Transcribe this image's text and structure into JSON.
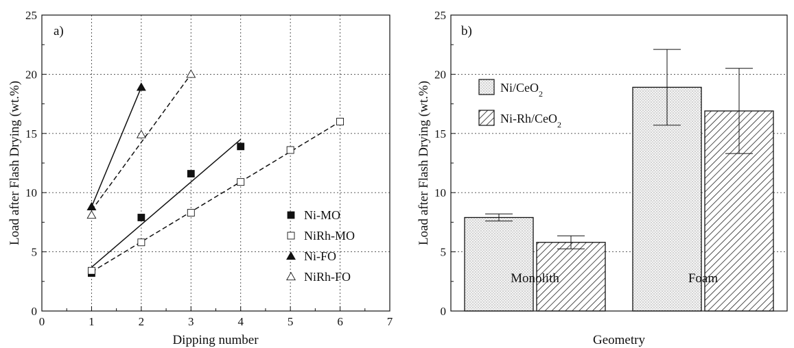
{
  "chart_data": [
    {
      "type": "scatter",
      "panel_label": "a)",
      "xlabel": "Dipping number",
      "ylabel": "Load after Flash Drying (wt.%)",
      "xlim": [
        0,
        7
      ],
      "ylim": [
        0,
        25
      ],
      "x_ticks": [
        "0",
        "1",
        "2",
        "3",
        "4",
        "5",
        "6",
        "7"
      ],
      "y_ticks": [
        "0",
        "5",
        "10",
        "15",
        "20",
        "25"
      ],
      "grid": true,
      "legend_position": "bottom-right",
      "series": [
        {
          "name": "Ni-MO",
          "marker": "square-filled",
          "fit": "solid",
          "points": [
            [
              1,
              3.2
            ],
            [
              2,
              7.9
            ],
            [
              3,
              11.6
            ],
            [
              4,
              13.9
            ]
          ],
          "fit_line": [
            [
              1,
              3.7
            ],
            [
              4,
              14.5
            ]
          ]
        },
        {
          "name": "NiRh-MO",
          "marker": "square-open",
          "fit": "dashed",
          "points": [
            [
              1,
              3.4
            ],
            [
              2,
              5.8
            ],
            [
              3,
              8.3
            ],
            [
              4,
              10.9
            ],
            [
              5,
              13.6
            ],
            [
              6,
              16.0
            ]
          ],
          "fit_line": [
            [
              1,
              3.3
            ],
            [
              6,
              16.0
            ]
          ]
        },
        {
          "name": "Ni-FO",
          "marker": "triangle-filled",
          "fit": "solid",
          "points": [
            [
              1,
              8.8
            ],
            [
              2,
              18.9
            ]
          ],
          "fit_line": [
            [
              1,
              8.8
            ],
            [
              2,
              18.9
            ]
          ]
        },
        {
          "name": "NiRh-FO",
          "marker": "triangle-open",
          "fit": "dashed",
          "points": [
            [
              1,
              8.1
            ],
            [
              2,
              14.9
            ],
            [
              3,
              20.0
            ]
          ],
          "fit_line": [
            [
              1,
              8.5
            ],
            [
              3,
              20.0
            ]
          ]
        }
      ]
    },
    {
      "type": "bar",
      "panel_label": "b)",
      "xlabel": "Geometry",
      "ylabel": "Load after Flash Drying (wt.%)",
      "ylim": [
        0,
        25
      ],
      "y_ticks": [
        "0",
        "5",
        "10",
        "15",
        "20",
        "25"
      ],
      "grid": true,
      "legend_position": "top-left",
      "categories": [
        "Monolith",
        "Foam"
      ],
      "series": [
        {
          "name": "Ni/CeO",
          "name_sub": "2",
          "pattern": "dots",
          "values": [
            7.9,
            18.9
          ],
          "error": [
            0.3,
            3.2
          ]
        },
        {
          "name": "Ni-Rh/CeO",
          "name_sub": "2",
          "pattern": "hatch",
          "values": [
            5.8,
            16.9
          ],
          "error": [
            0.55,
            3.6
          ]
        }
      ]
    }
  ]
}
